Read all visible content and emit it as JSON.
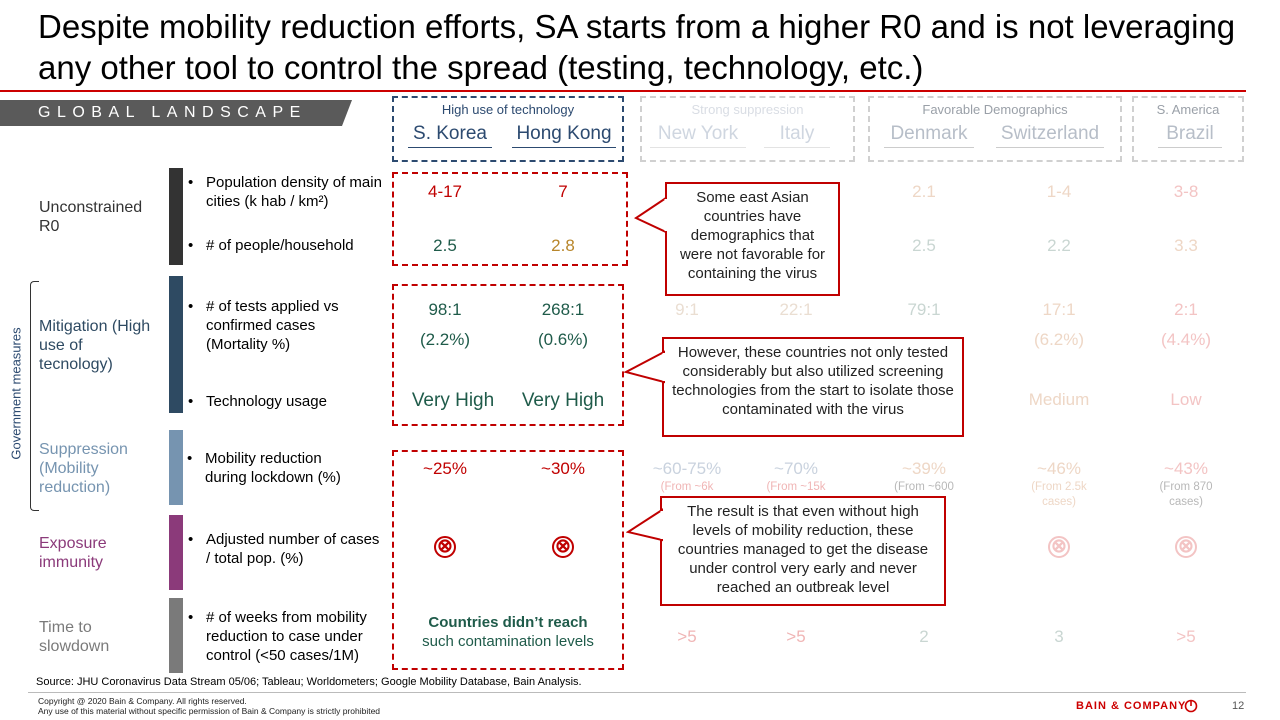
{
  "title": "Despite mobility reduction efforts, SA starts from a higher R0 and is not leveraging any other tool to control the spread (testing, technology, etc.)",
  "banner": "GLOBAL LANDSCAPE",
  "side_label": "Government measures",
  "groups": [
    {
      "title": "High use of technology",
      "countries": [
        "S. Korea",
        "Hong Kong"
      ]
    },
    {
      "title": "Strong suppression",
      "countries": [
        "New York",
        "Italy"
      ]
    },
    {
      "title": "Favorable Demographics",
      "countries": [
        "Denmark",
        "Switzerland"
      ]
    },
    {
      "title": "S. America",
      "countries": [
        "Brazil"
      ]
    }
  ],
  "categories": {
    "unconstrained": "Unconstrained R0",
    "mitigation": "Mitigation (High use of tecnology)",
    "suppression": "Suppression (Mobility reduction)",
    "exposure": "Exposure immunity",
    "time": "Time to slowdown"
  },
  "metrics": {
    "density": "Population density of main cities (k hab / km²)",
    "household": "# of people/household",
    "tests": "# of tests applied vs confirmed cases (Mortality %)",
    "tech": "Technology usage",
    "mobility": "Mobility reduction during lockdown (%)",
    "cases": "Adjusted number of cases / total pop. (%)",
    "weeks": "# of weeks from mobility reduction to case under control (<50 cases/1M)"
  },
  "values": {
    "skorea": {
      "density": "4-17",
      "household": "2.5",
      "tests": "98:1",
      "mort": "(2.2%)",
      "tech": "Very High",
      "mobility": "~25%"
    },
    "hongkong": {
      "density": "7",
      "household": "2.8",
      "tests": "268:1",
      "mort": "(0.6%)",
      "tech": "Very High",
      "mobility": "~30%"
    },
    "newyork": {
      "tests": "9:1",
      "mobility": "~60-75%",
      "mobility_sub": "(From ~6k",
      "weeks": ">5"
    },
    "italy": {
      "tests": "22:1",
      "mobility": "~70%",
      "mobility_sub": "(From ~15k",
      "weeks": ">5"
    },
    "denmark": {
      "density": "2.1",
      "household": "2.5",
      "tests": "79:1",
      "mobility": "~39%",
      "mobility_sub": "(From ~600",
      "weeks": "2"
    },
    "switzerland": {
      "density": "1-4",
      "household": "2.2",
      "tests": "17:1",
      "mort": "(6.2%)",
      "tech": "Medium",
      "mobility": "~46%",
      "mobility_sub": "(From 2.5k cases)",
      "weeks": "3"
    },
    "brazil": {
      "density": "3-8",
      "household": "3.3",
      "tests": "2:1",
      "mort": "(4.4%)",
      "tech": "Low",
      "mobility": "~43%",
      "mobility_sub": "(From 870 cases)",
      "weeks": ">5"
    }
  },
  "no_reach": {
    "line1": "Countries didn’t reach",
    "line2": "such contamination levels"
  },
  "x_symbol": "⊗",
  "callouts": [
    "Some east Asian countries have demographics that were not favorable for containing the virus",
    "However, these countries not only tested considerably but also utilized screening technologies from the start to isolate those contaminated with the virus",
    "The result is that even without high levels of mobility reduction, these countries managed to get the disease under control very early and never reached an outbreak level"
  ],
  "source": "Source: JHU Coronavirus Data Stream 05/06; Tableau; Worldometers; Google Mobility Database, Bain Analysis.",
  "copyright_1": "Copyright @ 2020 Bain & Company. All rights reserved.",
  "copyright_2": "Any use of this material without specific permission of Bain & Company is strictly prohibited",
  "brand": "BAIN & COMPANY",
  "page_number": "12",
  "colors": {
    "accent_red": "#c00000",
    "teal": "#1f5b4a",
    "navy": "#2c4a70",
    "cat_dark": "#333333",
    "cat_mitigation": "#2e4a62",
    "cat_suppression": "#7694b0",
    "cat_exposure": "#8b3a7a",
    "cat_time": "#7a7a7a"
  }
}
